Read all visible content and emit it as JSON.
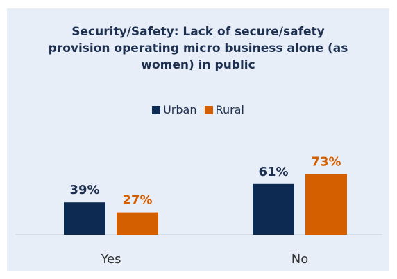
{
  "chart_data": {
    "type": "bar",
    "title_lines": [
      "Security/Safety: Lack of secure/safety",
      "provision operating micro business alone (as",
      "women) in public"
    ],
    "categories": [
      "Yes",
      "No"
    ],
    "series": [
      {
        "name": "Urban",
        "values": [
          39,
          61
        ],
        "labels": [
          "39%",
          "61%"
        ],
        "color": "#0d2b52"
      },
      {
        "name": "Rural",
        "values": [
          27,
          73
        ],
        "labels": [
          "27%",
          "73%"
        ],
        "color": "#d45f00"
      }
    ],
    "unit": "%",
    "ylim": [
      0,
      100
    ],
    "legend_position": "top-center",
    "grid": false,
    "background_color": "#e8eef7"
  }
}
